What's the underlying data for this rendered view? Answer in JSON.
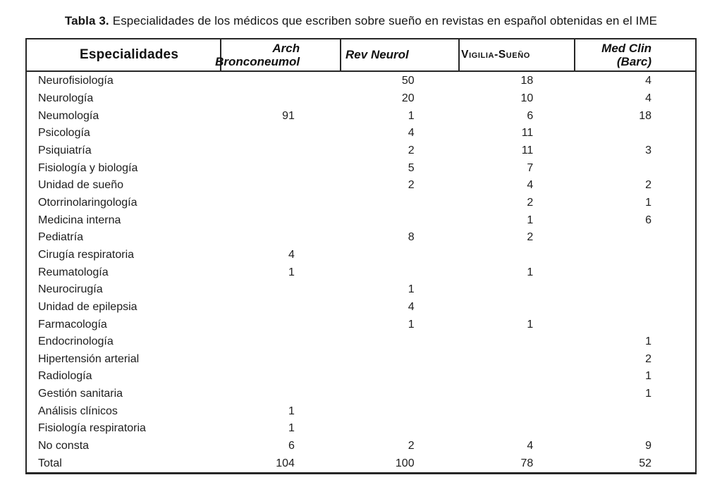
{
  "caption": {
    "label": "Tabla 3.",
    "text": "Especialidades de los médicos que escriben sobre sueño en revistas en español obtenidas en el IME"
  },
  "table": {
    "columns": [
      {
        "key": "especialidad",
        "label": "Especialidades",
        "style": "plain"
      },
      {
        "key": "arch",
        "label": "Arch\nBronconeumol",
        "style": "bold-italic"
      },
      {
        "key": "rev",
        "label": "Rev Neurol",
        "style": "bold-italic"
      },
      {
        "key": "vigilia",
        "label": "Vigilia-Sueño",
        "style": "smallcaps"
      },
      {
        "key": "med",
        "label": "Med Clin (Barc)",
        "style": "bold-italic"
      }
    ],
    "rows": [
      {
        "especialidad": "Neurofisiología",
        "arch": "",
        "rev": "",
        "vigilia": "",
        "med": ""
      },
      {
        "especialidad": "Neurología",
        "arch": "",
        "rev": "",
        "vigilia": "",
        "med": ""
      },
      {
        "especialidad": "Neumología",
        "arch": "",
        "rev": "",
        "vigilia": "",
        "med": ""
      },
      {
        "especialidad": "Psicología",
        "arch": "",
        "rev": "",
        "vigilia": "",
        "med": ""
      },
      {
        "especialidad": "Psiquiatría",
        "arch": "",
        "rev": "",
        "vigilia": "",
        "med": ""
      },
      {
        "especialidad": "Fisiología y biología",
        "arch": "",
        "rev": "",
        "vigilia": "",
        "med": ""
      },
      {
        "especialidad": "Unidad de sueño",
        "arch": "",
        "rev": "",
        "vigilia": "",
        "med": ""
      },
      {
        "especialidad": "Otorrinolaringología",
        "arch": "",
        "rev": "",
        "vigilia": "",
        "med": ""
      },
      {
        "especialidad": "Medicina interna",
        "arch": "",
        "rev": "",
        "vigilia": "",
        "med": ""
      },
      {
        "especialidad": "Pediatría",
        "arch": "",
        "rev": "",
        "vigilia": "",
        "med": ""
      },
      {
        "especialidad": "Cirugía respiratoria",
        "arch": "",
        "rev": "",
        "vigilia": "",
        "med": ""
      },
      {
        "especialidad": "Reumatología",
        "arch": "",
        "rev": "",
        "vigilia": "",
        "med": ""
      },
      {
        "especialidad": "Neurocirugía",
        "arch": "",
        "rev": "",
        "vigilia": "",
        "med": ""
      },
      {
        "especialidad": "Unidad de epilepsia",
        "arch": "",
        "rev": "",
        "vigilia": "",
        "med": ""
      },
      {
        "especialidad": "Farmacología",
        "arch": "",
        "rev": "",
        "vigilia": "",
        "med": ""
      },
      {
        "especialidad": "Endocrinología",
        "arch": "",
        "rev": "",
        "vigilia": "",
        "med": ""
      },
      {
        "especialidad": "Hipertensión arterial",
        "arch": "",
        "rev": "",
        "vigilia": "",
        "med": ""
      },
      {
        "especialidad": "Radiología",
        "arch": "",
        "rev": "",
        "vigilia": "",
        "med": ""
      },
      {
        "especialidad": "Gestión sanitaria",
        "arch": "",
        "rev": "",
        "vigilia": "",
        "med": ""
      },
      {
        "especialidad": "Análisis clínicos",
        "arch": "",
        "rev": "",
        "vigilia": "",
        "med": ""
      },
      {
        "especialidad": "Fisiología respiratoria",
        "arch": "",
        "rev": "",
        "vigilia": "",
        "med": ""
      },
      {
        "especialidad": "No consta",
        "arch": "",
        "rev": "",
        "vigilia": "",
        "med": ""
      },
      {
        "especialidad": "Total",
        "arch": "",
        "rev": "",
        "vigilia": "",
        "med": ""
      }
    ],
    "values": [
      {
        "arch": "",
        "rev": "50",
        "vigilia": "18",
        "med": "4"
      },
      {
        "arch": "",
        "rev": "20",
        "vigilia": "10",
        "med": "4"
      },
      {
        "arch": "91",
        "rev": "1",
        "vigilia": "6",
        "med": "18"
      },
      {
        "arch": "",
        "rev": "4",
        "vigilia": "11",
        "med": ""
      },
      {
        "arch": "",
        "rev": "2",
        "vigilia": "11",
        "med": "3"
      },
      {
        "arch": "",
        "rev": "5",
        "vigilia": "7",
        "med": ""
      },
      {
        "arch": "",
        "rev": "2",
        "vigilia": "4",
        "med": "2"
      },
      {
        "arch": "",
        "rev": "",
        "vigilia": "2",
        "med": "1"
      },
      {
        "arch": "",
        "rev": "",
        "vigilia": "1",
        "med": "6"
      },
      {
        "arch": "",
        "rev": "8",
        "vigilia": "2",
        "med": ""
      },
      {
        "arch": "4",
        "rev": "",
        "vigilia": "",
        "med": ""
      },
      {
        "arch": "1",
        "rev": "",
        "vigilia": "1",
        "med": ""
      },
      {
        "arch": "",
        "rev": "1",
        "vigilia": "",
        "med": ""
      },
      {
        "arch": "",
        "rev": "4",
        "vigilia": "",
        "med": ""
      },
      {
        "arch": "",
        "rev": "1",
        "vigilia": "1",
        "med": ""
      },
      {
        "arch": "",
        "rev": "",
        "vigilia": "",
        "med": "1"
      },
      {
        "arch": "",
        "rev": "",
        "vigilia": "",
        "med": "2"
      },
      {
        "arch": "",
        "rev": "",
        "vigilia": "",
        "med": "1"
      },
      {
        "arch": "",
        "rev": "",
        "vigilia": "",
        "med": "1"
      },
      {
        "arch": "1",
        "rev": "",
        "vigilia": "",
        "med": ""
      },
      {
        "arch": "1",
        "rev": "",
        "vigilia": "",
        "med": ""
      },
      {
        "arch": "6",
        "rev": "2",
        "vigilia": "4",
        "med": "9"
      },
      {
        "arch": "104",
        "rev": "100",
        "vigilia": "78",
        "med": "52"
      }
    ]
  }
}
